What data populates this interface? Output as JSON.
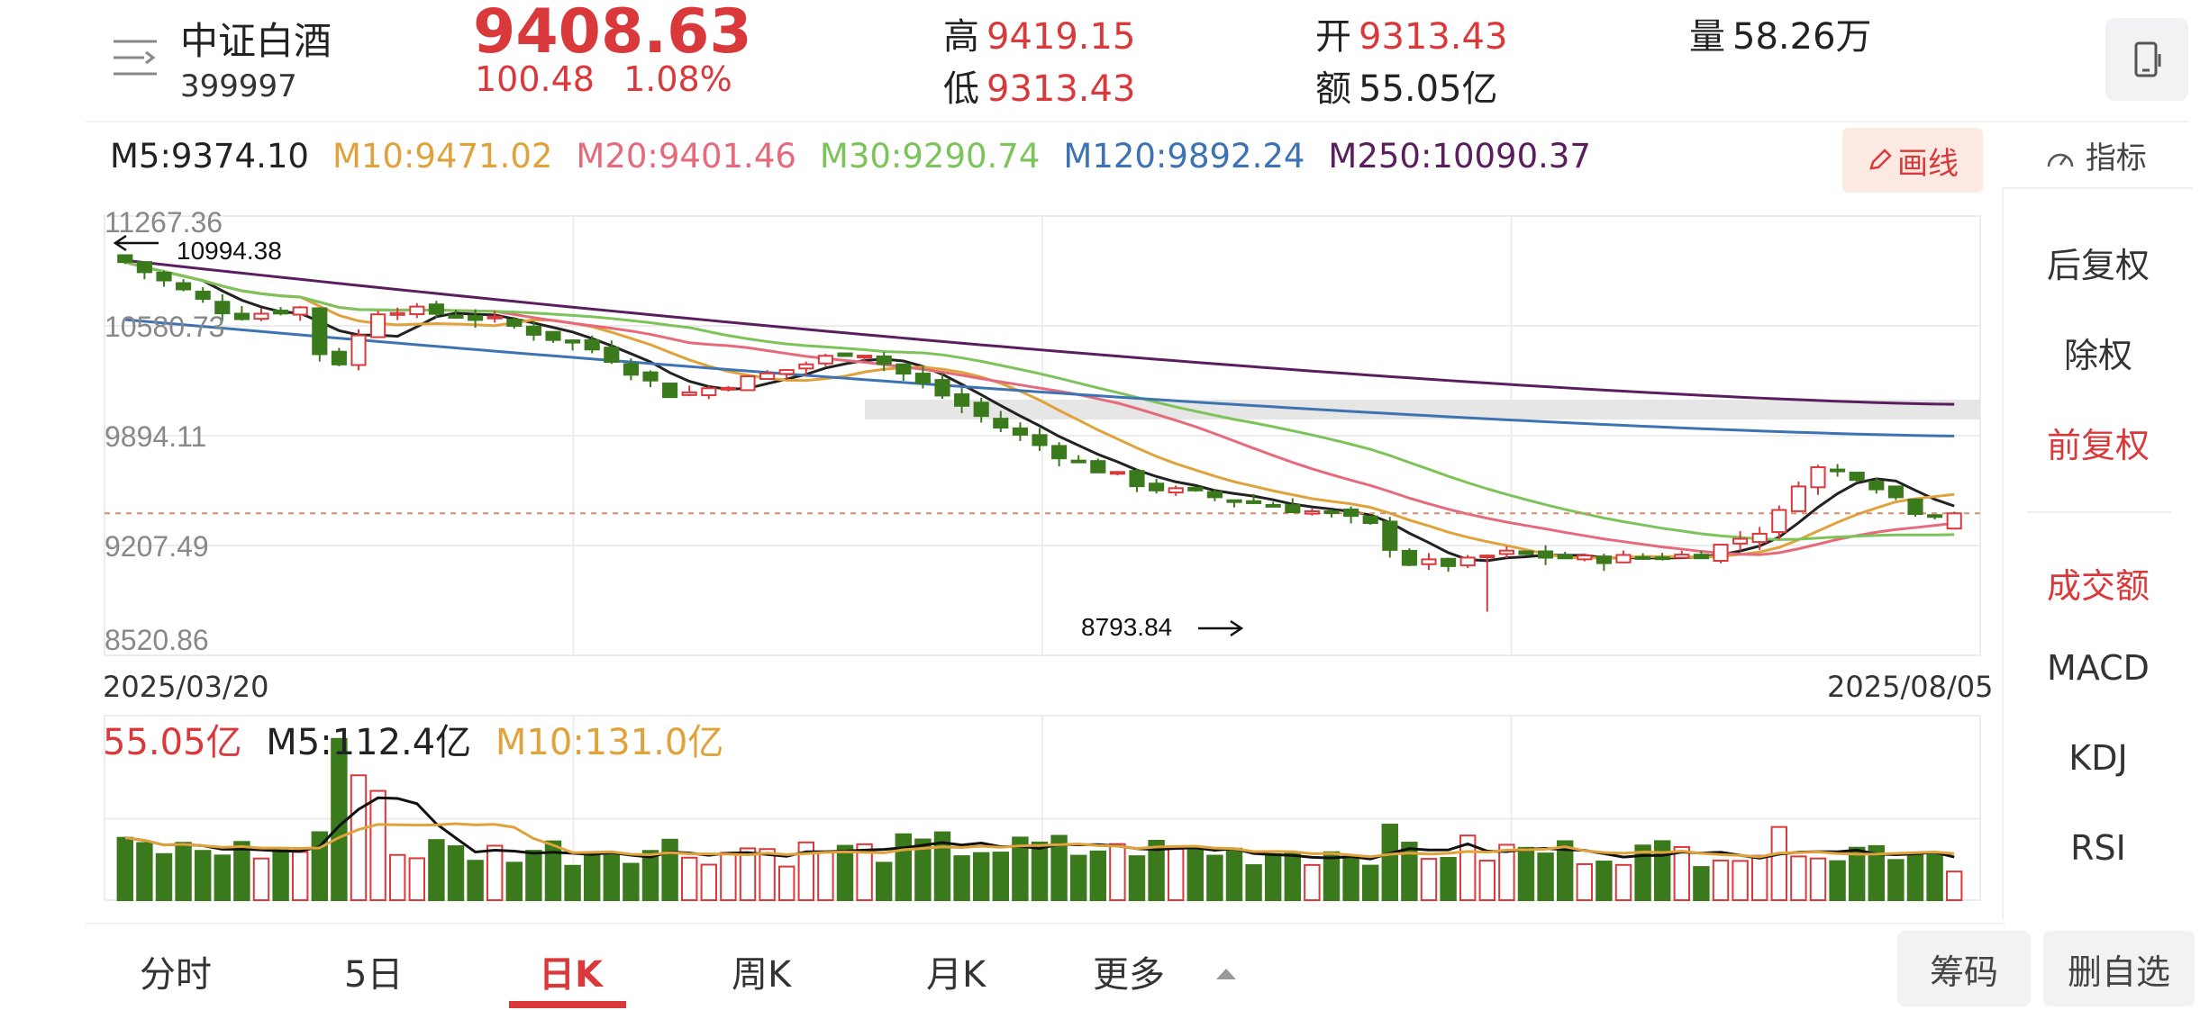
{
  "header": {
    "name": "中证白酒",
    "code": "399997",
    "price": "9408.63",
    "change": "100.48",
    "change_pct": "1.08%",
    "high_label": "高",
    "high": "9419.15",
    "low_label": "低",
    "low": "9313.43",
    "open_label": "开",
    "open": "9313.43",
    "amount_label": "额",
    "amount": "55.05亿",
    "volume_label": "量",
    "volume": "58.26万",
    "icons": {
      "menu": "menu-lines-icon",
      "phone": "phone-landscape-icon"
    }
  },
  "ma_legend": [
    {
      "label": "M5:9374.10",
      "color": "#222222"
    },
    {
      "label": "M10:9471.02",
      "color": "#e0a23a"
    },
    {
      "label": "M20:9401.46",
      "color": "#e46a7c"
    },
    {
      "label": "M30:9290.74",
      "color": "#7cc35a"
    },
    {
      "label": "M120:9892.24",
      "color": "#3d73b3"
    },
    {
      "label": "M250:10090.37",
      "color": "#5a1e5e"
    }
  ],
  "toolbar": {
    "draw_label": "画线",
    "indicator_label": "指标",
    "pencil_icon": "pencil-icon",
    "indicator_icon": "gauge-icon"
  },
  "side_panel": {
    "items": [
      "后复权",
      "除权",
      "前复权",
      "成交额",
      "MACD",
      "KDJ",
      "RSI"
    ],
    "active": [
      "前复权",
      "成交额"
    ]
  },
  "chart": {
    "y_ticks": [
      "11267.36",
      "10580.73",
      "9894.11",
      "9207.49",
      "8520.86"
    ],
    "max_annotation": "10994.38",
    "min_annotation": "8793.84",
    "date_start": "2025/03/20",
    "date_end": "2025/08/05",
    "volume_legend": {
      "current": "55.05亿",
      "m5": "M5:112.4亿",
      "m10": "M10:131.0亿"
    }
  },
  "chart_data": {
    "type": "candlestick",
    "title": "中证白酒",
    "x_range": [
      "2025/03/20",
      "2025/08/05"
    ],
    "ylim": [
      8520.86,
      11267.36
    ],
    "annotations": {
      "high": 10994.38,
      "low": 8793.84
    },
    "series": [
      {
        "name": "M5",
        "last": 9374.1
      },
      {
        "name": "M10",
        "last": 9471.02
      },
      {
        "name": "M20",
        "last": 9401.46
      },
      {
        "name": "M30",
        "last": 9290.74
      },
      {
        "name": "M120",
        "last": 9892.24
      },
      {
        "name": "M250",
        "last": 10090.37
      }
    ],
    "last_close": 9408.63,
    "volume": {
      "current": "55.05亿",
      "m5": "112.4亿",
      "m10": "131.0亿"
    }
  },
  "tabs": [
    "分时",
    "5日",
    "日K",
    "周K",
    "月K",
    "更多"
  ],
  "active_tab": "日K",
  "buttons": {
    "chips": "筹码",
    "remove_watch": "删自选"
  }
}
